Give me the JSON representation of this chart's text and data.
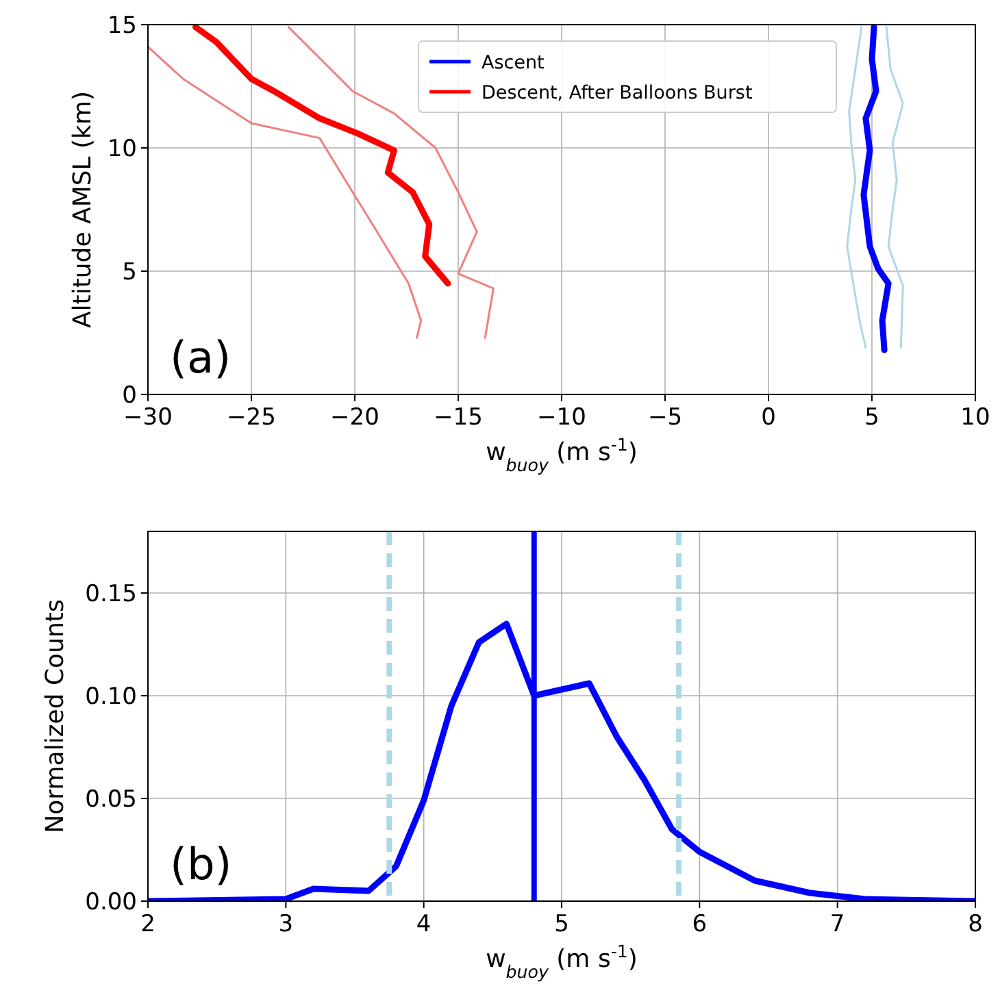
{
  "chart_data": [
    {
      "type": "line",
      "xlabel": "w$_{buoy}$ (m s$^{-1}$)",
      "ylabel": "Altitude AMSL (km)",
      "xlim": [
        -30,
        10
      ],
      "ylim": [
        0,
        15
      ],
      "xticks": [
        {
          "value": -30,
          "label": "−30"
        },
        {
          "value": -25,
          "label": "−25"
        },
        {
          "value": -20,
          "label": "−20"
        },
        {
          "value": -15,
          "label": "−15"
        },
        {
          "value": -10,
          "label": "−10"
        },
        {
          "value": -5,
          "label": "−5"
        },
        0,
        5,
        10
      ],
      "yticks": [
        0,
        5,
        10,
        15
      ],
      "grid": true,
      "legend": "top",
      "marker": "none",
      "line_style": "solid",
      "annotations": [
        "(a)"
      ],
      "series": [
        {
          "color": "#add8e6",
          "x": [
            4.7,
            4.4,
            3.8,
            4.0,
            4.2,
            4.0,
            3.9,
            4.2,
            4.5
          ],
          "values": [
            1.9,
            3.0,
            6.0,
            7.5,
            8.7,
            10.2,
            11.5,
            13.2,
            14.9
          ]
        },
        {
          "color": "#add8e6",
          "x": [
            6.4,
            6.5,
            5.8,
            6.0,
            6.2,
            6.0,
            6.5,
            5.9,
            5.7
          ],
          "values": [
            1.9,
            4.4,
            6.0,
            7.5,
            8.7,
            10.2,
            11.8,
            13.2,
            14.9
          ]
        },
        {
          "name": "Ascent",
          "color": "#0000ff",
          "x": [
            5.6,
            5.5,
            5.8,
            5.3,
            4.9,
            4.6,
            4.9,
            4.7,
            5.2,
            5.0,
            5.1
          ],
          "values": [
            1.8,
            3.0,
            4.5,
            5.1,
            6.0,
            8.1,
            9.9,
            11.2,
            12.3,
            13.6,
            14.9
          ]
        },
        {
          "color": "#f08080",
          "x": [
            -17.0,
            -16.8,
            -17.4,
            -19.0,
            -20.1,
            -21.7,
            -25.0,
            -28.3,
            -30.0
          ],
          "values": [
            2.3,
            3.0,
            4.5,
            6.7,
            8.2,
            10.4,
            11.0,
            12.8,
            14.1
          ]
        },
        {
          "color": "#f08080",
          "x": [
            -13.7,
            -13.3,
            -15.0,
            -14.1,
            -15.0,
            -16.1,
            -18.1,
            -20.1,
            -23.2
          ],
          "values": [
            2.3,
            4.3,
            4.9,
            6.6,
            8.2,
            10.0,
            11.4,
            12.3,
            14.9
          ]
        },
        {
          "name": "Descent, After Balloons Burst",
          "color": "#ff0000",
          "x": [
            -15.5,
            -16.6,
            -16.4,
            -17.2,
            -18.4,
            -18.1,
            -19.9,
            -21.7,
            -23.9,
            -25.0,
            -26.7,
            -27.7
          ],
          "values": [
            4.5,
            5.6,
            6.9,
            8.2,
            9.0,
            9.9,
            10.6,
            11.2,
            12.3,
            12.8,
            14.3,
            14.9
          ]
        }
      ]
    },
    {
      "type": "line",
      "xlabel": "w$_{buoy}$ (m s$^{-1}$)",
      "ylabel": "Normalized Counts",
      "xlim": [
        2,
        8
      ],
      "ylim": [
        0,
        0.18
      ],
      "xticks": [
        2,
        3,
        4,
        5,
        6,
        7,
        8
      ],
      "yticks": [
        {
          "value": 0,
          "label": "0.00"
        },
        {
          "value": 0.05,
          "label": "0.05"
        },
        {
          "value": 0.1,
          "label": "0.10"
        },
        {
          "value": 0.15,
          "label": "0.15"
        }
      ],
      "grid": true,
      "marker": "none",
      "line_style": "solid",
      "annotations": [
        "(b)"
      ],
      "x": [
        2.0,
        3.0,
        3.2,
        3.6,
        3.8,
        4.0,
        4.2,
        4.4,
        4.6,
        4.8,
        5.2,
        5.4,
        5.6,
        5.8,
        6.0,
        6.4,
        6.8,
        7.2,
        8.0
      ],
      "series": [
        {
          "color": "#0000ff",
          "values": [
            0,
            0.001,
            0.006,
            0.005,
            0.017,
            0.049,
            0.095,
            0.126,
            0.135,
            0.1,
            0.106,
            0.08,
            0.059,
            0.035,
            0.024,
            0.01,
            0.004,
            0.001,
            0
          ]
        }
      ],
      "ref_lines": [
        {
          "axis": "x",
          "value": 4.8,
          "color": "#0000ff",
          "line_style": "solid"
        },
        {
          "axis": "x",
          "value": 3.75,
          "color": "#add8e6",
          "line_style": "dashed"
        },
        {
          "axis": "x",
          "value": 5.85,
          "color": "#add8e6",
          "line_style": "dashed"
        }
      ]
    }
  ]
}
